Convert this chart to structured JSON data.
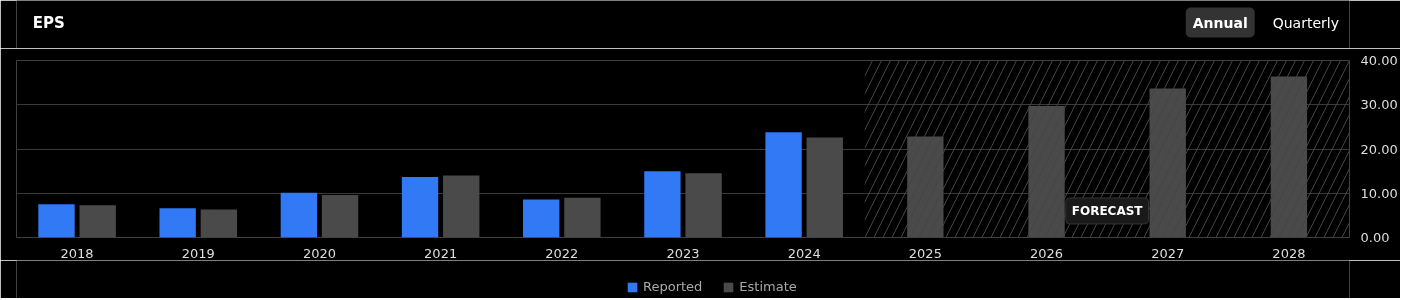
{
  "chart_data": {
    "type": "bar",
    "title": "EPS",
    "categories": [
      "2018",
      "2019",
      "2020",
      "2021",
      "2022",
      "2023",
      "2024",
      "2025",
      "2026",
      "2027",
      "2028"
    ],
    "series": [
      {
        "name": "Reported",
        "color": "#3179f5",
        "values": [
          7.5,
          6.6,
          10.1,
          13.7,
          8.6,
          15.0,
          23.8,
          null,
          null,
          null,
          null
        ]
      },
      {
        "name": "Estimate",
        "color": "#4a4a4a",
        "values": [
          7.3,
          6.3,
          9.6,
          14.0,
          9.0,
          14.5,
          22.6,
          22.8,
          29.7,
          33.7,
          36.4
        ]
      }
    ],
    "ylim": [
      0,
      40
    ],
    "yticks": [
      {
        "value": 0,
        "label": "0.00"
      },
      {
        "value": 10,
        "label": "10.00"
      },
      {
        "value": 20,
        "label": "20.00"
      },
      {
        "value": 30,
        "label": "30.00"
      },
      {
        "value": 40,
        "label": "40.00"
      }
    ],
    "bands": [
      {
        "axis": "x",
        "from": "2025",
        "to": "2028",
        "label": "FORECAST"
      }
    ],
    "annotations": [
      "Annual",
      "Quarterly"
    ],
    "grid": "y",
    "legend": "bottom"
  }
}
